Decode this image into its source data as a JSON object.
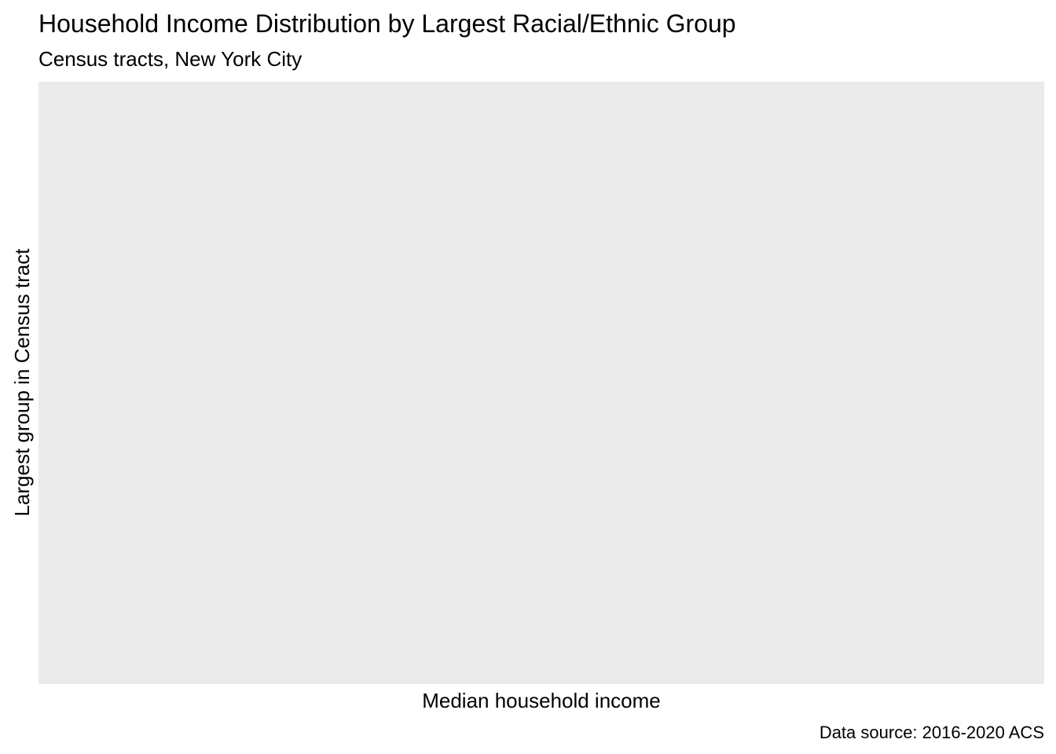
{
  "chart_data": {
    "type": "scatter",
    "title": "Household Income Distribution by Largest Racial/Ethnic Group",
    "subtitle": "Census tracts, New York City",
    "xlabel": "Median household income",
    "ylabel": "Largest group in Census tract",
    "caption": "Data source: 2016-2020 ACS",
    "categories": [],
    "series": [],
    "grid": false,
    "legend": "none",
    "colors": {
      "panel_background": "#ebebeb",
      "page_background": "#ffffff",
      "text": "#000000"
    }
  }
}
